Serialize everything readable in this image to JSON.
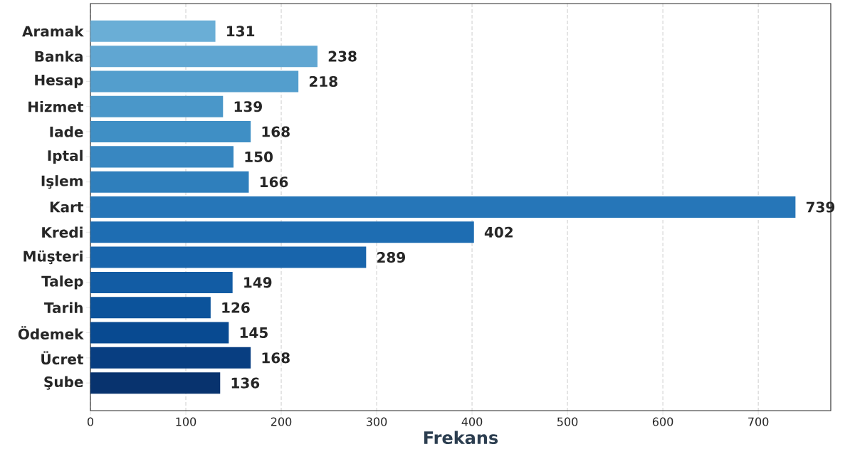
{
  "chart_data": {
    "type": "bar",
    "orientation": "horizontal",
    "xlabel": "Frekans",
    "categories": [
      "Aramak",
      "Banka",
      "Hesap",
      "Hizmet",
      "Iade",
      "Iptal",
      "Işlem",
      "Kart",
      "Kredi",
      "Müşteri",
      "Talep",
      "Tarih",
      "Ödemek",
      "Ücret",
      "Şube"
    ],
    "values": [
      131,
      238,
      218,
      139,
      168,
      150,
      166,
      739,
      402,
      289,
      149,
      126,
      145,
      168,
      136
    ],
    "value_labels": [
      "131",
      "238",
      "218",
      "139",
      "168",
      "150",
      "166",
      "739",
      "402",
      "289",
      "149",
      "126",
      "145",
      "168",
      "136"
    ],
    "colors": [
      "#6aaed6",
      "#60a6d2",
      "#539ecd",
      "#4a97c9",
      "#3f8fc5",
      "#3887c1",
      "#2f7fbc",
      "#2676b8",
      "#1e6db2",
      "#1865ac",
      "#125ca4",
      "#0c539b",
      "#084a91",
      "#083e81",
      "#08336e"
    ],
    "xlim": [
      0,
      776
    ],
    "xticks": [
      0,
      100,
      200,
      300,
      400,
      500,
      600,
      700
    ],
    "grid": "x"
  }
}
